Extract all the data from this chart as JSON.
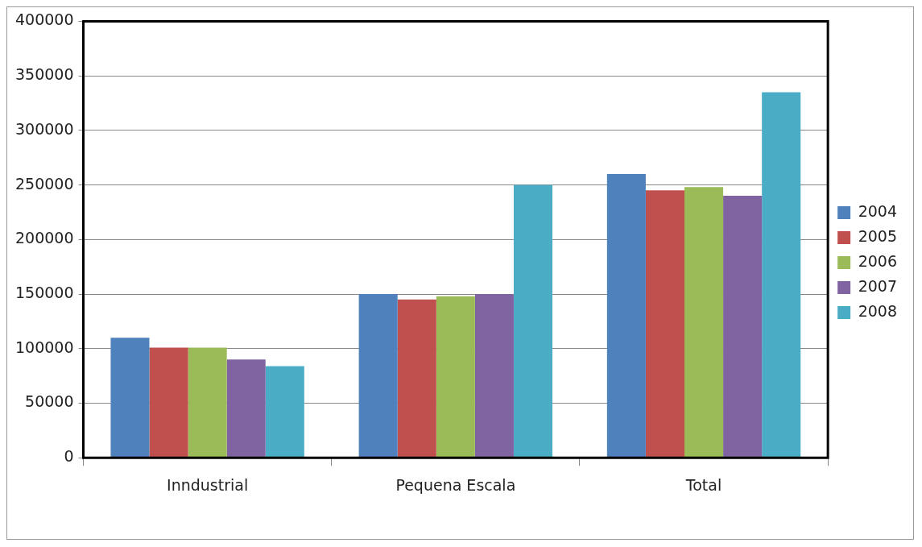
{
  "chart_data": {
    "type": "bar",
    "categories": [
      "Inndustrial",
      "Pequena Escala",
      "Total"
    ],
    "series": [
      {
        "name": "2004",
        "color": "#4f81bd",
        "values": [
          110000,
          150000,
          260000
        ]
      },
      {
        "name": "2005",
        "color": "#c0504d",
        "values": [
          101000,
          145000,
          245000
        ]
      },
      {
        "name": "2006",
        "color": "#9bbb59",
        "values": [
          101000,
          148000,
          248000
        ]
      },
      {
        "name": "2007",
        "color": "#8064a2",
        "values": [
          90000,
          150000,
          240000
        ]
      },
      {
        "name": "2008",
        "color": "#4bacc6",
        "values": [
          84000,
          250000,
          335000
        ]
      }
    ],
    "ylim": [
      0,
      400000
    ],
    "yticks": [
      0,
      50000,
      100000,
      150000,
      200000,
      250000,
      300000,
      350000,
      400000
    ],
    "grid": "y",
    "legend": "right"
  }
}
